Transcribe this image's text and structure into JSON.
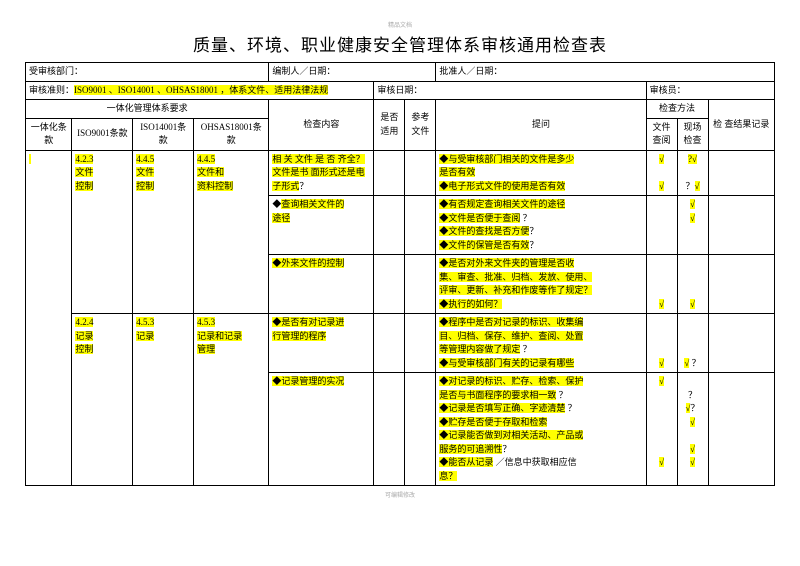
{
  "title": "质量、环境、职业健康安全管理体系审核通用检查表",
  "meta": {
    "dept_label": "受审核部门：",
    "compiler_label": "编制人／日期：",
    "approver_label": "批准人／日期：",
    "criteria_label": "审核准则：",
    "criteria_val": "ISO9001 、ISO14001 、OHSAS18001     ，体系文件、适用法律法规",
    "audit_date_label": "审核日期：",
    "auditor_label": "审核员："
  },
  "hdr": {
    "sysreq": "一体化管理体系要求",
    "yth": "一体化条款",
    "iso9": "ISO9001条款",
    "iso14": "ISO14001条款",
    "oh": "OHSAS18001条款",
    "content": "检查内容",
    "apply": "是否适用",
    "ref": "参考文件",
    "q": "提问",
    "method": "检查方法",
    "m1": "文件查阅",
    "m2": "现场检查",
    "result": "检     查结果记录"
  },
  "rows": [
    {
      "iso9": "4.2.3\n文件\n控制",
      "iso14": "4.4.5\n文件\n控制",
      "oh": "4.4.5\n文件和\n资料控制",
      "content": [
        {
          "t": "相 关 文件 是 否 齐",
          "hl": 1
        },
        {
          "t": "全？文件是书    面形",
          "hl": 1
        },
        {
          "t": "式还是电子形式",
          "hl": 1
        },
        {
          "t": "？",
          "hl": 0
        }
      ],
      "q": [
        {
          "t": "◆与受审核部门相关的文件是多少",
          "hl": 1
        },
        {
          "br": 1
        },
        {
          "t": "    是否有效",
          "hl": 1
        },
        {
          "br": 1
        },
        {
          "t": "◆电子形式文件的使用是否有效",
          "hl": 1
        }
      ],
      "m1": [
        {
          "t": "√",
          "hl": 1
        },
        {
          "br": 1
        },
        {
          "br": 1
        },
        {
          "t": "√",
          "hl": 1
        }
      ],
      "m2": [
        {
          "t": "?√",
          "hl": 1
        },
        {
          "br": 1
        },
        {
          "br": 1
        },
        {
          "t": "？",
          "hl": 0
        },
        {
          "t": "√",
          "hl": 1
        }
      ]
    },
    {
      "content": [
        {
          "t": "◆",
          "hl": 0
        },
        {
          "t": "查询相关文件的",
          "hl": 1
        },
        {
          "br": 1
        },
        {
          "t": "途径",
          "hl": 1
        }
      ],
      "q": [
        {
          "t": "◆有否规定查询相关文件的途径",
          "hl": 1
        },
        {
          "br": 1
        },
        {
          "t": "◆文件是否便于查阅",
          "hl": 1
        },
        {
          "t": "                   ？",
          "hl": 0
        },
        {
          "br": 1
        },
        {
          "t": "◆文件的查找是否方便",
          "hl": 1
        },
        {
          "t": "？",
          "hl": 0
        },
        {
          "br": 1
        },
        {
          "t": "◆文件的保管是否有效",
          "hl": 1
        },
        {
          "t": "？",
          "hl": 0
        }
      ],
      "m1": [
        {
          "t": "",
          "hl": 0
        }
      ],
      "m2": [
        {
          "t": "√",
          "hl": 1
        },
        {
          "br": 1
        },
        {
          "t": "√",
          "hl": 1
        }
      ],
      "joinTop": true
    },
    {
      "content": [
        {
          "t": "◆外来文件的控制",
          "hl": 1
        }
      ],
      "q": [
        {
          "t": "◆是否对外来文件夹的管理是否收",
          "hl": 1
        },
        {
          "br": 1
        },
        {
          "t": "集、审查、批准、归档、发放、使用、",
          "hl": 1
        },
        {
          "br": 1
        },
        {
          "t": "评审、更新、补充和作废等作了规定？",
          "hl": 1
        },
        {
          "br": 1
        },
        {
          "t": "◆执行的如何？",
          "hl": 1
        }
      ],
      "m1": [
        {
          "br": 1
        },
        {
          "br": 1
        },
        {
          "br": 1
        },
        {
          "t": "√",
          "hl": 1
        }
      ],
      "m2": [
        {
          "br": 1
        },
        {
          "br": 1
        },
        {
          "br": 1
        },
        {
          "t": "√",
          "hl": 1
        }
      ],
      "joinTop": true
    },
    {
      "iso9": "4.2.4\n记录\n控制",
      "iso14": "4.5.3\n记录",
      "oh": "4.5.3\n记录和记录\n管理",
      "content": [
        {
          "t": "◆是否有对记录进",
          "hl": 1
        },
        {
          "br": 1
        },
        {
          "t": "行管理的程序",
          "hl": 1
        }
      ],
      "q": [
        {
          "t": "◆程序中是否对记录的标识、收集编",
          "hl": 1
        },
        {
          "br": 1
        },
        {
          "t": "目、归档、保存、维护、查阅、处置",
          "hl": 1
        },
        {
          "br": 1
        },
        {
          "t": "等管理内容做了规定",
          "hl": 1
        },
        {
          "t": "                ？",
          "hl": 0
        },
        {
          "br": 1
        },
        {
          "t": "◆与受审核部门有关的记录有哪些",
          "hl": 1
        }
      ],
      "m1": [
        {
          "br": 1
        },
        {
          "br": 1
        },
        {
          "br": 1
        },
        {
          "t": "√",
          "hl": 1
        }
      ],
      "m2": [
        {
          "br": 1
        },
        {
          "br": 1
        },
        {
          "br": 1
        },
        {
          "t": "√",
          "hl": 1
        },
        {
          "t": "  ？",
          "hl": 0
        }
      ]
    },
    {
      "content": [
        {
          "t": "◆记录管理的实况",
          "hl": 1
        }
      ],
      "q": [
        {
          "t": "◆对记录的标识、贮存、检索、保护",
          "hl": 1
        },
        {
          "br": 1
        },
        {
          "t": "是否与书面程序的要求相一致",
          "hl": 1
        },
        {
          "t": "             ？",
          "hl": 0
        },
        {
          "br": 1
        },
        {
          "t": "◆记录是否填写正确、字迹清楚",
          "hl": 1
        },
        {
          "t": "          ？",
          "hl": 0
        },
        {
          "br": 1
        },
        {
          "t": "◆贮存是否便于存取和检索",
          "hl": 1
        },
        {
          "br": 1
        },
        {
          "t": "◆记录能否做到对相关活动、产品或",
          "hl": 1
        },
        {
          "br": 1
        },
        {
          "t": "服务的可追溯性",
          "hl": 1
        },
        {
          "t": "？",
          "hl": 0
        },
        {
          "br": 1
        },
        {
          "t": "◆能否从记录",
          "hl": 1
        },
        {
          "t": "               ／信息中获取相应信",
          "hl": 0
        },
        {
          "br": 1
        },
        {
          "t": "息？",
          "hl": 1
        }
      ],
      "m1": [
        {
          "t": "√",
          "hl": 1
        },
        {
          "br": 1
        },
        {
          "br": 1
        },
        {
          "br": 1
        },
        {
          "br": 1
        },
        {
          "br": 1
        },
        {
          "br": 1
        },
        {
          "t": "√",
          "hl": 1
        }
      ],
      "m2": [
        {
          "br": 1
        },
        {
          "t": "？",
          "hl": 0
        },
        {
          "br": 1
        },
        {
          "t": "√",
          "hl": 1
        },
        {
          "t": "？",
          "hl": 0
        },
        {
          "br": 1
        },
        {
          "t": "√",
          "hl": 1
        },
        {
          "br": 1
        },
        {
          "br": 1
        },
        {
          "t": "√",
          "hl": 1
        },
        {
          "br": 1
        },
        {
          "t": "√",
          "hl": 1
        }
      ],
      "joinTop": true
    }
  ],
  "hdrnote": "精品文档",
  "footnote": "可编辑修改"
}
